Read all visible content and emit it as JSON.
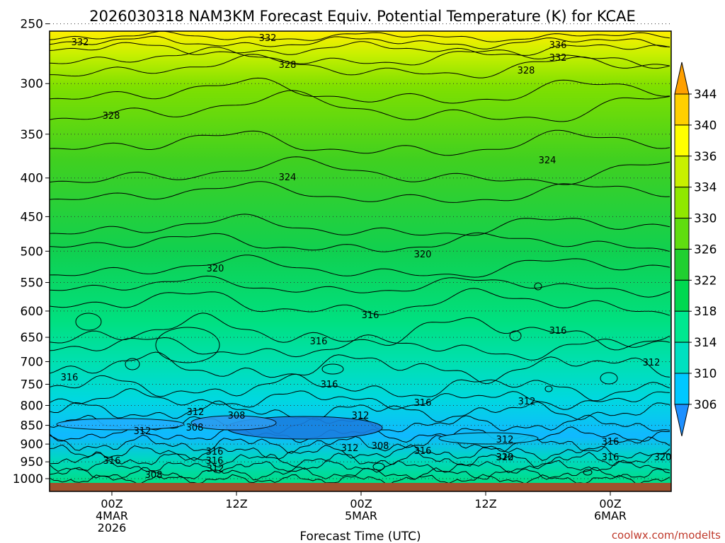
{
  "title": "2026030318 NAM3KM Forecast Equiv. Potential Temperature (K) for KCAE",
  "xlabel": "Forecast Time (UTC)",
  "credit": "coolwx.com/modelts",
  "chart_data": {
    "type": "heatmap",
    "title": "2026030318 NAM3KM Forecast Equiv. Potential Temperature (K) for KCAE",
    "xlabel": "Forecast Time (UTC)",
    "ylabel": "",
    "y_scale": "log",
    "y_inverted": true,
    "y_ticks": [
      250,
      300,
      350,
      400,
      450,
      500,
      550,
      600,
      650,
      700,
      750,
      800,
      850,
      900,
      950,
      1000
    ],
    "x_ticks": [
      {
        "line1": "00Z",
        "line2": "4MAR",
        "line3": "2026"
      },
      {
        "line1": "12Z",
        "line2": "",
        "line3": ""
      },
      {
        "line1": "00Z",
        "line2": "5MAR",
        "line3": ""
      },
      {
        "line1": "12Z",
        "line2": "",
        "line3": ""
      },
      {
        "line1": "00Z",
        "line2": "6MAR",
        "line3": ""
      }
    ],
    "colorbar": {
      "values": [
        306,
        310,
        314,
        318,
        322,
        326,
        330,
        334,
        336,
        340,
        344
      ],
      "colors": [
        "#1e90ff",
        "#00c8ff",
        "#00e0c0",
        "#00e890",
        "#00d850",
        "#20d030",
        "#60dd10",
        "#90e800",
        "#c8f000",
        "#ffff00",
        "#ffd000",
        "#ffa000"
      ]
    },
    "contour_labels": [
      {
        "value": "332"
      },
      {
        "value": "332"
      },
      {
        "value": "336"
      },
      {
        "value": "332"
      },
      {
        "value": "328"
      },
      {
        "value": "328"
      },
      {
        "value": "328"
      },
      {
        "value": "324"
      },
      {
        "value": "324"
      },
      {
        "value": "320"
      },
      {
        "value": "320"
      },
      {
        "value": "316"
      },
      {
        "value": "316"
      },
      {
        "value": "316"
      },
      {
        "value": "316"
      },
      {
        "value": "316"
      },
      {
        "value": "316"
      },
      {
        "value": "312"
      },
      {
        "value": "312"
      },
      {
        "value": "308"
      },
      {
        "value": "312"
      },
      {
        "value": "308"
      },
      {
        "value": "316"
      },
      {
        "value": "312"
      },
      {
        "value": "308"
      },
      {
        "value": "312"
      },
      {
        "value": "316"
      },
      {
        "value": "316"
      },
      {
        "value": "312"
      },
      {
        "value": "308"
      },
      {
        "value": "316"
      },
      {
        "value": "312"
      },
      {
        "value": "320"
      },
      {
        "value": "316"
      },
      {
        "value": "320"
      },
      {
        "value": "312"
      },
      {
        "value": "312"
      },
      {
        "value": "316"
      }
    ],
    "grid": "dotted horizontal at pressure levels",
    "legend": "colorbar right"
  }
}
